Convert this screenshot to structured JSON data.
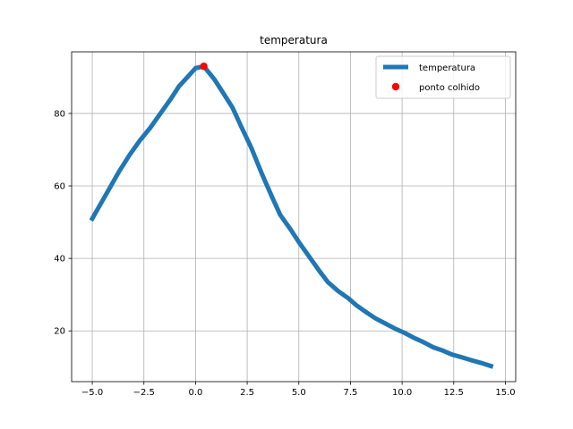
{
  "chart_data": {
    "type": "line",
    "title": "temperatura",
    "xlabel": "",
    "ylabel": "",
    "xlim": [
      -6.0,
      15.5
    ],
    "ylim": [
      6.0,
      97.0
    ],
    "grid": true,
    "x_ticks": [
      -5.0,
      -2.5,
      0.0,
      2.5,
      5.0,
      7.5,
      10.0,
      12.5,
      15.0
    ],
    "x_tick_labels": [
      "−5.0",
      "−2.5",
      "0.0",
      "2.5",
      "5.0",
      "7.5",
      "10.0",
      "12.5",
      "15.0"
    ],
    "y_ticks": [
      20,
      40,
      60,
      80
    ],
    "y_tick_labels": [
      "20",
      "40",
      "60",
      "80"
    ],
    "legend_position": "upper right",
    "series": [
      {
        "name": "temperatura",
        "kind": "line",
        "color": "#1f77b4",
        "x": [
          -5.0,
          -4.6,
          -4.2,
          -3.7,
          -3.2,
          -2.7,
          -2.2,
          -1.7,
          -1.2,
          -0.8,
          -0.4,
          0.0,
          0.4,
          0.9,
          1.3,
          1.8,
          2.2,
          2.7,
          3.2,
          3.7,
          4.1,
          4.6,
          5.0,
          5.5,
          6.0,
          6.4,
          6.9,
          7.4,
          7.8,
          8.3,
          8.7,
          9.2,
          9.7,
          10.1,
          10.6,
          11.0,
          11.5,
          12.0,
          12.4,
          12.9,
          13.3,
          13.8,
          14.3
        ],
        "y": [
          51.0,
          55.0,
          59.0,
          64.0,
          68.5,
          72.5,
          76.0,
          80.0,
          84.0,
          87.5,
          90.0,
          92.5,
          93.0,
          89.5,
          86.0,
          81.5,
          76.5,
          70.5,
          63.5,
          57.0,
          52.0,
          48.0,
          44.5,
          40.5,
          36.5,
          33.5,
          31.0,
          29.0,
          27.0,
          25.0,
          23.5,
          22.0,
          20.5,
          19.5,
          18.0,
          17.0,
          15.5,
          14.5,
          13.5,
          12.7,
          12.0,
          11.2,
          10.3
        ]
      },
      {
        "name": "ponto colhido",
        "kind": "scatter",
        "color": "#ff0000",
        "x": [
          0.4
        ],
        "y": [
          93.0
        ]
      }
    ]
  }
}
